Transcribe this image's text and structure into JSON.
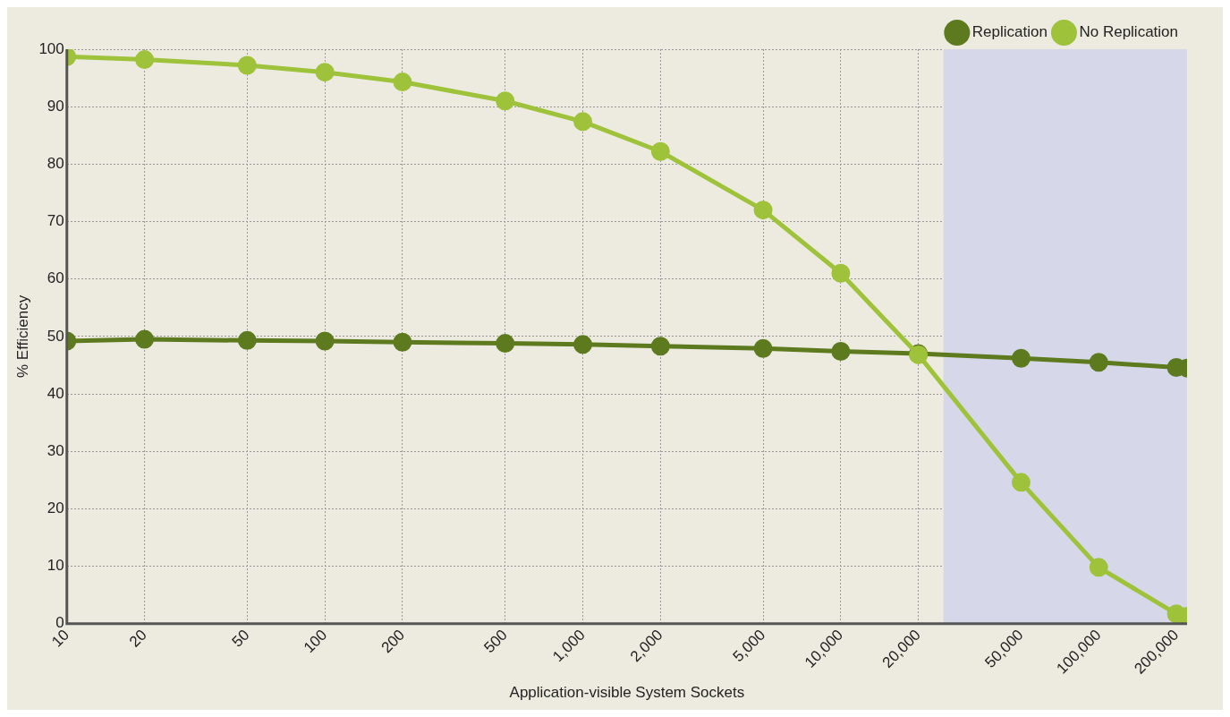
{
  "chart_data": {
    "type": "line",
    "xlabel": "Application-visible System Sockets",
    "ylabel": "% Efficiency",
    "log": "x",
    "x": [
      10,
      20,
      50,
      100,
      200,
      500,
      1000,
      2000,
      5000,
      10000,
      20000,
      50000,
      100000,
      200000,
      220000
    ],
    "series": [
      {
        "name": "Replication",
        "color": "#5e7a1f",
        "values": [
          49.2,
          49.5,
          49.3,
          49.2,
          49.0,
          48.8,
          48.6,
          48.3,
          47.9,
          47.4,
          47.0,
          46.2,
          45.5,
          44.6,
          44.5
        ]
      },
      {
        "name": "No Replication",
        "color": "#9ec23a",
        "values": [
          98.7,
          98.2,
          97.2,
          96.0,
          94.3,
          91.0,
          87.4,
          82.2,
          72.0,
          61.0,
          46.8,
          24.6,
          9.8,
          1.7,
          1.3
        ]
      }
    ],
    "xlim": [
      10,
      220000
    ],
    "ylim": [
      0,
      100
    ],
    "xticks": [
      10,
      20,
      50,
      100,
      200,
      500,
      {
        "value": 1000,
        "label": "1,000"
      },
      {
        "value": 2000,
        "label": "2,000"
      },
      {
        "value": 5000,
        "label": "5,000"
      },
      {
        "value": 10000,
        "label": "10,000"
      },
      {
        "value": 20000,
        "label": "20,000"
      },
      {
        "value": 50000,
        "label": "50,000"
      },
      {
        "value": 100000,
        "label": "100,000"
      },
      {
        "value": 200000,
        "label": "200,000"
      }
    ],
    "yticks": [
      0,
      10,
      20,
      30,
      40,
      50,
      60,
      70,
      80,
      90,
      100
    ],
    "bands": [
      {
        "axis": "x",
        "from": 25000,
        "to": 220000,
        "color": "#d6d8ea"
      }
    ],
    "grid": true,
    "legend": "top right",
    "marker": "circle",
    "line_style": "solid"
  }
}
